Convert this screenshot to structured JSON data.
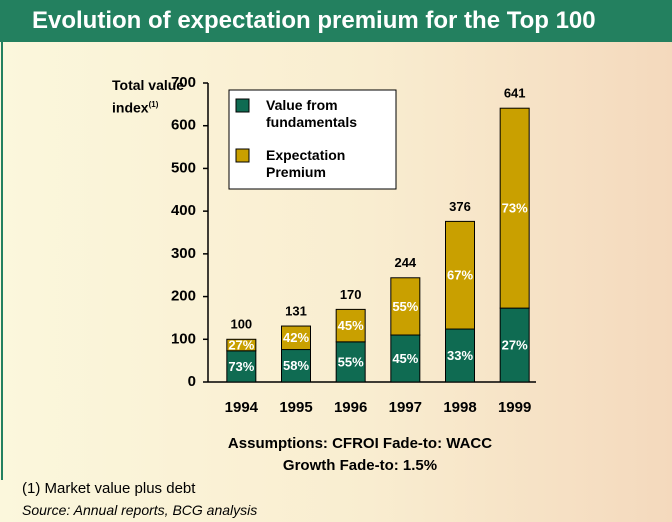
{
  "chart_data": {
    "type": "stacked_bar",
    "title": "Evolution of expectation premium for the Top 100",
    "y_label": "Total value index",
    "y_label_note": "(1)",
    "categories": [
      "1994",
      "1995",
      "1996",
      "1997",
      "1998",
      "1999"
    ],
    "series": [
      {
        "name": "Value from fundamentals",
        "color": "#0f6b52",
        "values": [
          73,
          76,
          94,
          110,
          124,
          173
        ],
        "value_labels": [
          "73%",
          "58%",
          "55%",
          "45%",
          "33%",
          "27%"
        ]
      },
      {
        "name": "Expectation Premium",
        "color": "#c9a000",
        "values": [
          27,
          55,
          76,
          134,
          252,
          468
        ],
        "value_labels": [
          "27%",
          "42%",
          "45%",
          "55%",
          "67%",
          "73%"
        ]
      }
    ],
    "total_labels": [
      100,
      131,
      170,
      244,
      376,
      641
    ],
    "ylim": [
      0,
      700
    ],
    "yticks": [
      0,
      100,
      200,
      300,
      400,
      500,
      600,
      700
    ],
    "legend": "upper left",
    "annotations": [
      "Assumptions: CFROI Fade-to: WACC",
      "Growth Fade-to: 1.5%"
    ],
    "footnote": "(1)   Market value plus debt",
    "source": "Source: Annual reports, BCG analysis"
  }
}
